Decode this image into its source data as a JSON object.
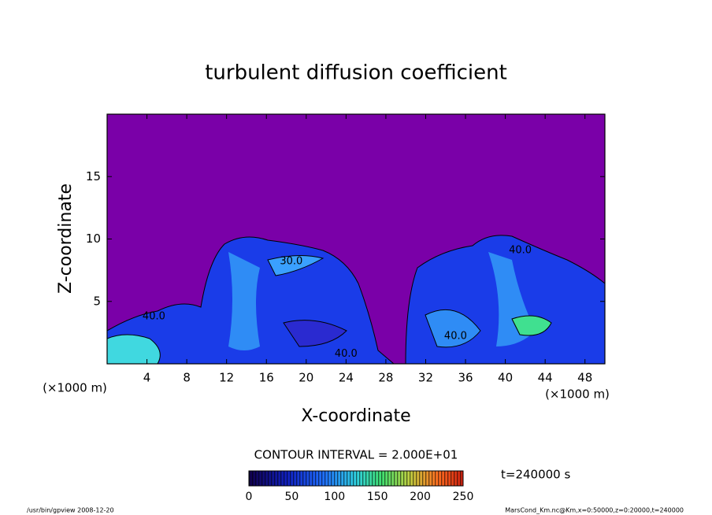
{
  "chart_data": {
    "type": "contour",
    "title": "turbulent diffusion coefficient",
    "xlabel": "X-coordinate",
    "ylabel": "Z-coordinate",
    "x_unit": "(×1000 m)",
    "xlim": [
      0,
      50
    ],
    "xticks": [
      4,
      8,
      12,
      16,
      20,
      24,
      28,
      32,
      36,
      40,
      44,
      48
    ],
    "ylim": [
      0,
      20
    ],
    "yticks": [
      5,
      10,
      15
    ],
    "contour_interval": "CONTOUR INTERVAL = 2.000E+01",
    "contour_labels": [
      {
        "label": "40.0",
        "x": 4.7,
        "y": 3.8
      },
      {
        "label": "30.0",
        "x": 18.5,
        "y": 8.2
      },
      {
        "label": "40.0",
        "x": 24,
        "y": 0.8
      },
      {
        "label": "40.0",
        "x": 41.5,
        "y": 9.1
      },
      {
        "label": "40.0",
        "x": 35,
        "y": 2.2
      }
    ],
    "colorbar": {
      "lim": [
        0,
        250
      ],
      "ticks": [
        0,
        50,
        100,
        150,
        200,
        250
      ]
    },
    "time_label": "t=240000 s",
    "footer_left": "/usr/bin/gpview  2008-12-20",
    "footer_right": "MarsCond_Km.nc@Km,x=0:50000,z=0:20000,t=240000"
  }
}
